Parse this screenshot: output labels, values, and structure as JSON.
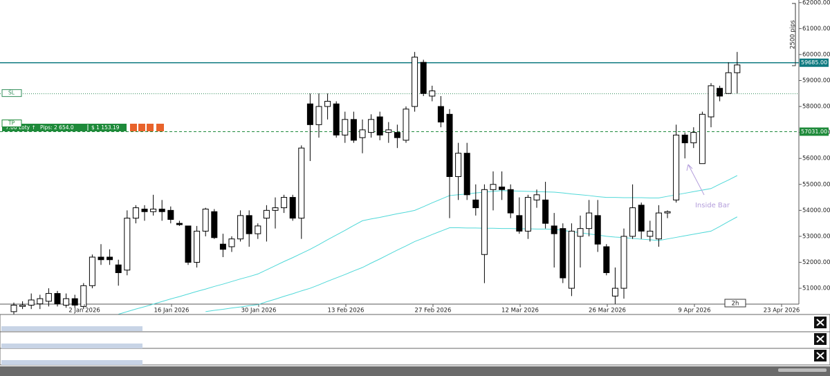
{
  "chart_data": {
    "type": "candlestick",
    "up_color": "#ffffff",
    "down_color": "#000000",
    "open": [
      50100,
      50300,
      50350,
      50400,
      50500,
      50800,
      50350,
      50600,
      50300,
      51100,
      52200,
      52200,
      51900,
      51700,
      53700,
      54050,
      53950,
      54050,
      54000,
      53500,
      53400,
      52000,
      53200,
      53950,
      52700,
      52600,
      52900,
      53800,
      53100,
      53700,
      54000,
      54100,
      54500,
      53700,
      58100,
      57300,
      58000,
      58100,
      56900,
      57500,
      56800,
      57000,
      57600,
      57000,
      57000,
      56700,
      58000,
      59700,
      58400,
      58000,
      57700,
      55300,
      56200,
      54400,
      52300,
      54800,
      54900,
      54800,
      53800,
      53200,
      54400,
      54400,
      53400,
      53300,
      51000,
      53000,
      53300,
      53800,
      52600,
      50700,
      51000,
      53000,
      54200,
      53000,
      52900,
      53900,
      54400,
      56900,
      56600,
      55800,
      57600,
      58700,
      58500,
      59300
    ],
    "high": [
      50450,
      50500,
      50800,
      50750,
      51000,
      50900,
      50800,
      50750,
      51200,
      52300,
      52700,
      52500,
      52100,
      54000,
      54200,
      54200,
      54600,
      54400,
      54150,
      53600,
      53400,
      53400,
      54100,
      54050,
      53100,
      53000,
      54000,
      54000,
      53500,
      54200,
      54500,
      54600,
      54600,
      56500,
      58500,
      58500,
      58500,
      58200,
      57800,
      57800,
      57500,
      57700,
      57800,
      57400,
      57300,
      58000,
      60100,
      59800,
      58800,
      58400,
      57900,
      56600,
      56600,
      55000,
      55000,
      55500,
      55500,
      55000,
      54500,
      54600,
      54800,
      55100,
      53900,
      53500,
      53500,
      53800,
      54400,
      54400,
      52700,
      51800,
      53300,
      55000,
      54300,
      53600,
      54200,
      54000,
      57300,
      57000,
      57200,
      57800,
      58900,
      58800,
      59700,
      60100
    ],
    "low": [
      50000,
      50200,
      50200,
      50200,
      50300,
      50300,
      50250,
      50250,
      50200,
      51000,
      51900,
      51900,
      51100,
      51500,
      53500,
      53600,
      53800,
      53600,
      53500,
      53400,
      51900,
      51800,
      53000,
      52900,
      52200,
      52400,
      52800,
      52600,
      52900,
      52800,
      53300,
      53900,
      53600,
      52900,
      55900,
      56800,
      57500,
      56800,
      56600,
      56600,
      56200,
      56800,
      56700,
      56600,
      56400,
      56600,
      57800,
      58400,
      58200,
      57200,
      53700,
      54400,
      54400,
      53800,
      51200,
      54000,
      54400,
      53700,
      53100,
      52900,
      54100,
      53300,
      51800,
      51200,
      50700,
      51800,
      53000,
      52400,
      51500,
      50400,
      50600,
      52900,
      52900,
      52800,
      52600,
      53700,
      54300,
      56000,
      56400,
      55800,
      57200,
      58200,
      58500,
      58500
    ],
    "close": [
      50350,
      50350,
      50550,
      50600,
      50800,
      50400,
      50600,
      50350,
      51100,
      52200,
      52100,
      52100,
      51600,
      53700,
      54100,
      53950,
      54050,
      53950,
      53650,
      53450,
      52000,
      53200,
      54050,
      52950,
      52500,
      52900,
      53800,
      53100,
      53400,
      54000,
      54100,
      54500,
      53700,
      56400,
      57300,
      58000,
      58200,
      56900,
      57500,
      56700,
      57100,
      57500,
      56900,
      57100,
      56800,
      57900,
      59900,
      58500,
      58600,
      57400,
      55300,
      56200,
      54600,
      54100,
      54800,
      55000,
      54800,
      53900,
      53200,
      54500,
      54600,
      53500,
      53100,
      51400,
      53200,
      53300,
      53900,
      52700,
      51600,
      51000,
      53000,
      54100,
      53200,
      53200,
      53900,
      53950,
      56900,
      56600,
      57000,
      57700,
      58800,
      58400,
      59300,
      59600
    ],
    "lines": [
      {
        "color": "#4fd8d8",
        "values": [
          null,
          null,
          null,
          null,
          null,
          null,
          null,
          null,
          null,
          null,
          null,
          null,
          50000,
          50100,
          50200,
          50290,
          50390,
          50490,
          50590,
          50680,
          50780,
          50880,
          50970,
          51070,
          51160,
          51260,
          51360,
          51450,
          51550,
          51710,
          51870,
          52030,
          52180,
          52340,
          52500,
          52680,
          52870,
          53050,
          53230,
          53420,
          53600,
          53670,
          53730,
          53800,
          53870,
          53930,
          54000,
          54140,
          54290,
          54430,
          54570,
          54600,
          54630,
          54670,
          54700,
          54730,
          54760,
          54750,
          54740,
          54730,
          54720,
          54710,
          54700,
          54670,
          54630,
          54600,
          54570,
          54530,
          54500,
          54500,
          54490,
          54490,
          54490,
          54480,
          54480,
          54540,
          54600,
          54660,
          54720,
          54780,
          54840,
          55010,
          55170,
          55340
        ]
      },
      {
        "color": "#4fd8d8",
        "values": [
          null,
          null,
          null,
          null,
          null,
          null,
          null,
          null,
          null,
          null,
          null,
          null,
          null,
          null,
          null,
          null,
          null,
          null,
          null,
          null,
          null,
          null,
          50100,
          50150,
          50190,
          50240,
          50280,
          50330,
          50370,
          50480,
          50580,
          50690,
          50790,
          50900,
          51000,
          51130,
          51270,
          51400,
          51530,
          51670,
          51800,
          51970,
          52130,
          52300,
          52470,
          52630,
          52800,
          52930,
          53070,
          53200,
          53330,
          53330,
          53320,
          53320,
          53310,
          53310,
          53300,
          53300,
          53290,
          53290,
          53280,
          53280,
          53270,
          53230,
          53180,
          53140,
          53090,
          53050,
          53000,
          52970,
          52950,
          52920,
          52890,
          52870,
          52840,
          52900,
          52960,
          53020,
          53080,
          53140,
          53200,
          53380,
          53570,
          53750
        ]
      }
    ],
    "levels": [
      {
        "value": 59685,
        "label": "59685.00",
        "color": "#0e7a80",
        "style": "solid"
      },
      {
        "value": 58490,
        "name": "SL",
        "color": "#2e8b57",
        "style": "dotted"
      },
      {
        "value": 57031,
        "label": "57031.00",
        "name": "TP",
        "color": "#1e8a3a",
        "style": "dashed"
      }
    ],
    "ylim": [
      50390,
      62100
    ],
    "yticks": [
      {
        "value": 51000,
        "label": "51000.00"
      },
      {
        "value": 52000,
        "label": "52000.00"
      },
      {
        "value": 53000,
        "label": "53000.00"
      },
      {
        "value": 54000,
        "label": "54000.00"
      },
      {
        "value": 55000,
        "label": "55000.00"
      },
      {
        "value": 56000,
        "label": "56000.00"
      },
      {
        "value": 57000,
        "label": "57000.00"
      },
      {
        "value": 58000,
        "label": "58000.00"
      },
      {
        "value": 59000,
        "label": "59000.00"
      },
      {
        "value": 60000,
        "label": "60000.00"
      },
      {
        "value": 61000,
        "label": "61000.00"
      },
      {
        "value": 62000,
        "label": "62000.00"
      }
    ],
    "xtick_labels": [
      "2 Jan 2026",
      "16 Jan 2026",
      "30 Jan 2026",
      "13 Feb 2026",
      "27 Feb 2026",
      "12 Mar 2026",
      "26 Mar 2026",
      "9 Apr 2026",
      "23 Apr 2026"
    ],
    "timeframe": "2h",
    "ruler_label": "2500 pips",
    "annotation": "Inside Bar",
    "position": {
      "lots": "7.00 Loty ↑",
      "pips": "Pips: 2 654.0",
      "profit": "$ 1 153.19"
    }
  }
}
